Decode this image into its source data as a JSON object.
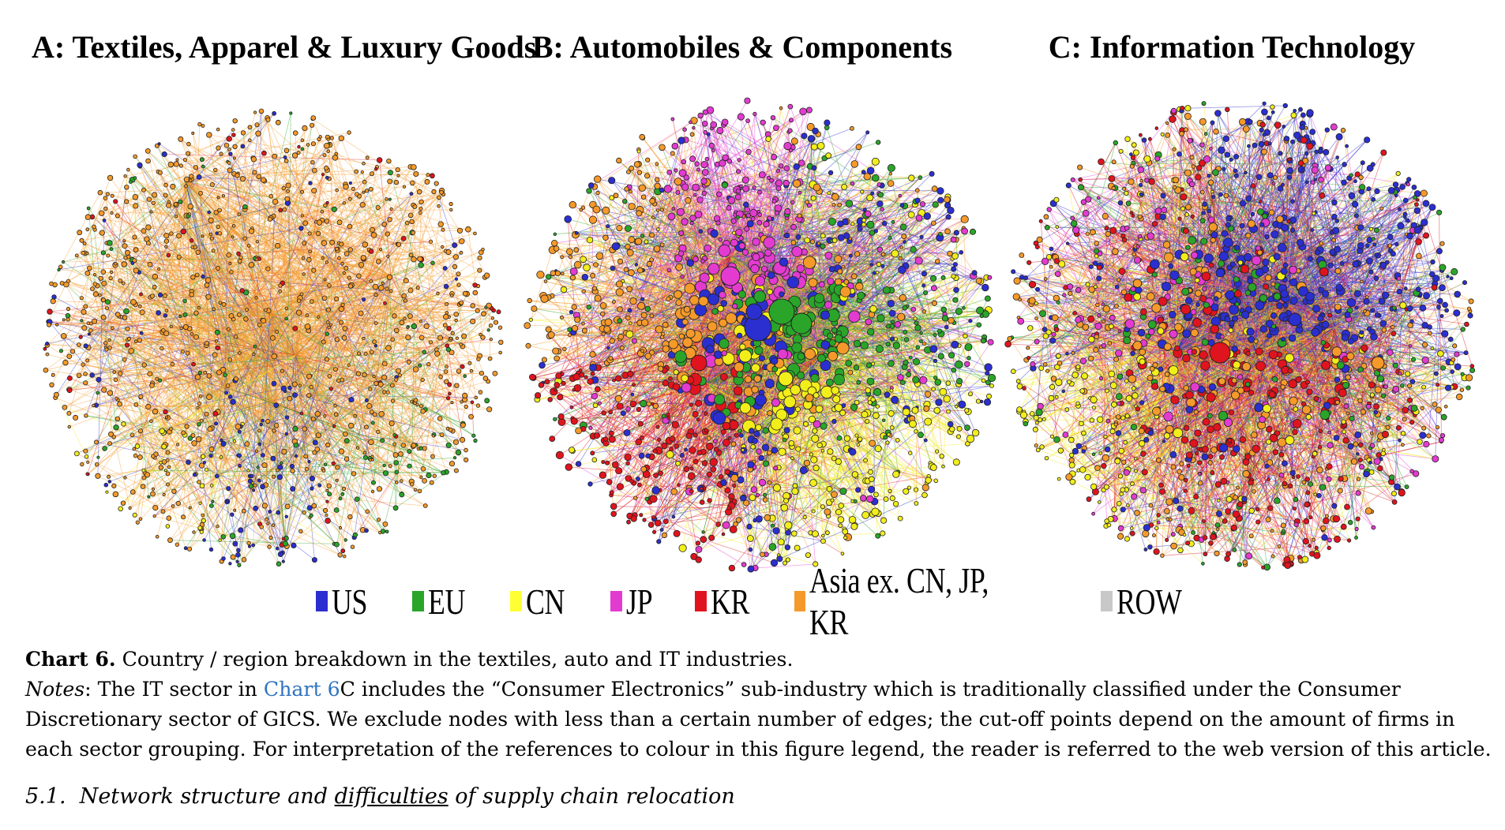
{
  "panels": [
    {
      "id": "a",
      "title": "A: Textiles, Apparel & Luxury Goods"
    },
    {
      "id": "b",
      "title": "B: Automobiles & Components"
    },
    {
      "id": "c",
      "title": "C: Information Technology"
    }
  ],
  "legend": [
    {
      "label": "US",
      "color": "#2b2fd0"
    },
    {
      "label": "EU",
      "color": "#2aa52a"
    },
    {
      "label": "CN",
      "color": "#ffff33"
    },
    {
      "label": "JP",
      "color": "#e33bd0"
    },
    {
      "label": "KR",
      "color": "#e0141e"
    },
    {
      "label": "Asia ex. CN, JP, KR",
      "color": "#f59a2a"
    },
    {
      "label": "ROW",
      "color": "#c8c8c8"
    }
  ],
  "caption": {
    "label": "Chart 6.",
    "text": " Country / region breakdown in the textiles, auto and IT industries.",
    "notes_label": "Notes",
    "notes_pre": ": The IT sector in ",
    "notes_link": "Chart 6",
    "notes_post": "C includes the “Consumer Electronics” sub-industry which is traditionally classified under the Consumer Discretionary sector of GICS. We exclude nodes with less than a certain number of edges; the cut-off points depend on the amount of firms in each sector grouping. For interpretation of the references to colour in this figure legend, the reader is referred to the web version of this article."
  },
  "section": {
    "number": "5.1.",
    "pre": "Network structure and ",
    "underlined": "difficulties",
    "post": " of supply chain relocation"
  }
}
